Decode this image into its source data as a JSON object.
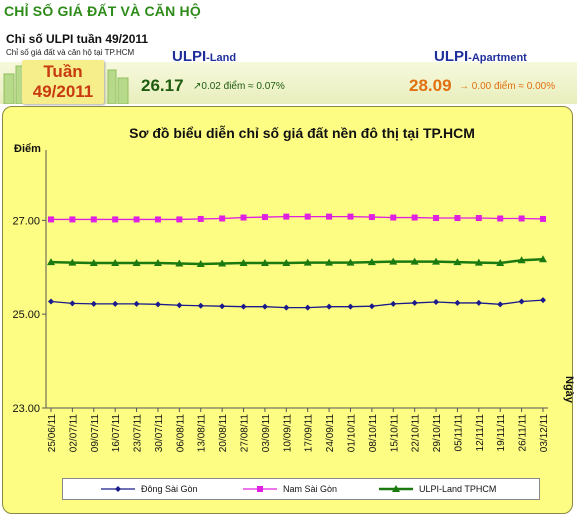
{
  "header": {
    "title": "CHỈ SỐ GIÁ ĐẤT VÀ CĂN HỘ",
    "week_heading": "Chỉ số ULPI tuần 49/2011",
    "week_subheading": "Chỉ số giá đất và căn hộ tại TP.HCM",
    "week_badge_line1": "Tuần",
    "week_badge_line2": "49/2011"
  },
  "ulpi_land": {
    "name": "ULPI",
    "suffix": "-Land",
    "value": "26.17",
    "change": "0.02 điểm ≈ 0.07%",
    "arrow": "↗",
    "color": "#1e5c10"
  },
  "ulpi_apartment": {
    "name": "ULPI",
    "suffix": "-Apartment",
    "value": "28.09",
    "change": "0.00 điểm ≈ 0.00%",
    "arrow": "→",
    "color": "#e07010"
  },
  "chart_data": {
    "type": "line",
    "title": "Sơ đồ biểu diễn chỉ số giá đất nền đô thị tại TP.HCM",
    "ylabel": "Điểm",
    "xlabel": "Ngày",
    "ylim": [
      23,
      28.5
    ],
    "yticks": [
      "23.00",
      "25.00",
      "27.00"
    ],
    "grid": false,
    "legend_position": "bottom",
    "categories": [
      "25/06/11",
      "02/07/11",
      "09/07/11",
      "16/07/11",
      "23/07/11",
      "30/07/11",
      "06/08/11",
      "13/08/11",
      "20/08/11",
      "27/08/11",
      "03/09/11",
      "10/09/11",
      "17/09/11",
      "24/09/11",
      "01/10/11",
      "08/10/11",
      "15/10/11",
      "22/10/11",
      "29/10/11",
      "05/11/11",
      "12/11/11",
      "19/11/11",
      "26/11/11",
      "03/12/11"
    ],
    "series": [
      {
        "name": "Đông Sài Gòn",
        "color": "#1a1a8c",
        "marker": "diamond",
        "values": [
          25.27,
          25.23,
          25.22,
          25.22,
          25.22,
          25.21,
          25.19,
          25.18,
          25.17,
          25.16,
          25.16,
          25.14,
          25.14,
          25.16,
          25.16,
          25.17,
          25.22,
          25.24,
          25.26,
          25.24,
          25.24,
          25.21,
          25.27,
          25.3
        ]
      },
      {
        "name": "Nam Sài Gòn",
        "color": "#e020e0",
        "marker": "square",
        "values": [
          27.02,
          27.02,
          27.02,
          27.02,
          27.02,
          27.02,
          27.02,
          27.03,
          27.04,
          27.06,
          27.07,
          27.08,
          27.08,
          27.08,
          27.08,
          27.07,
          27.06,
          27.06,
          27.05,
          27.05,
          27.05,
          27.04,
          27.04,
          27.03
        ]
      },
      {
        "name": "ULPI-Land TPHCM",
        "color": "#1a7a10",
        "marker": "triangle",
        "values": [
          26.11,
          26.1,
          26.09,
          26.09,
          26.09,
          26.09,
          26.08,
          26.07,
          26.08,
          26.09,
          26.09,
          26.09,
          26.1,
          26.1,
          26.1,
          26.11,
          26.12,
          26.12,
          26.12,
          26.11,
          26.1,
          26.09,
          26.15,
          26.17
        ]
      }
    ]
  }
}
